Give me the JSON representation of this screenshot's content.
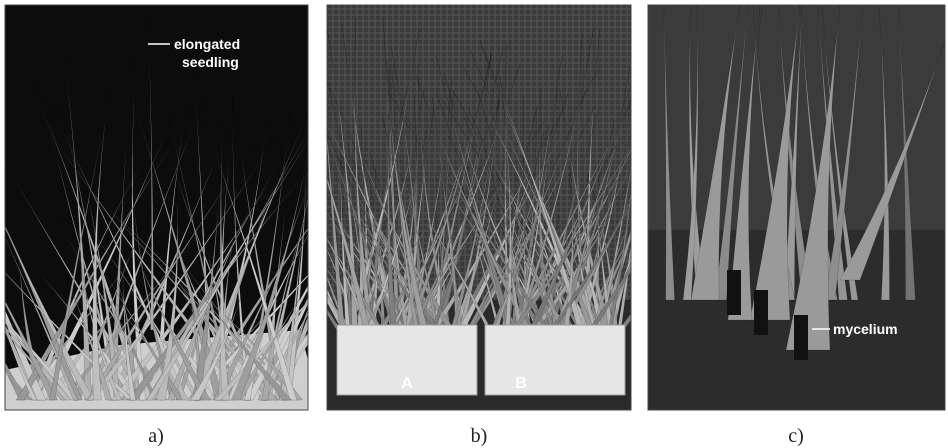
{
  "panels": [
    {
      "caption": "a)",
      "annotation": [
        "elongated",
        "seedling"
      ]
    },
    {
      "caption": "b)",
      "labels": [
        "A",
        "B"
      ]
    },
    {
      "caption": "c)",
      "annotation": [
        "mycelium"
      ]
    }
  ]
}
